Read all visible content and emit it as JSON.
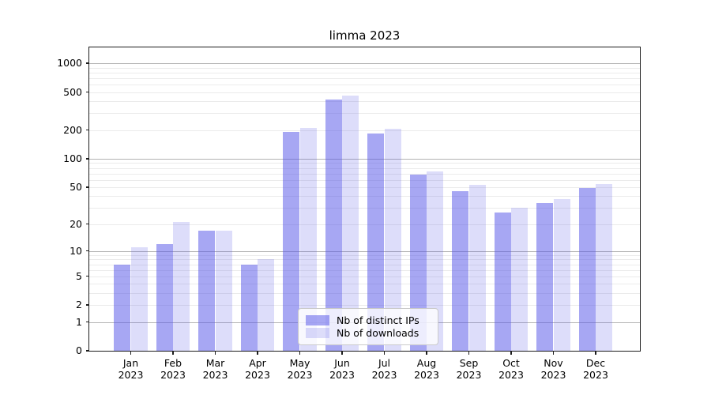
{
  "chart_data": {
    "type": "bar",
    "title": "limma 2023",
    "x_months": [
      "Jan",
      "Feb",
      "Mar",
      "Apr",
      "May",
      "Jun",
      "Jul",
      "Aug",
      "Sep",
      "Oct",
      "Nov",
      "Dec"
    ],
    "x_year": "2023",
    "series": [
      {
        "name": "Nb of distinct IPs",
        "color": "rgba(86,86,232,0.52)",
        "values": [
          7,
          12,
          17,
          7,
          193,
          420,
          186,
          68,
          45,
          27,
          34,
          49
        ]
      },
      {
        "name": "Nb of downloads",
        "color": "rgba(86,86,232,0.20)",
        "values": [
          11,
          21,
          17,
          8,
          210,
          460,
          205,
          74,
          53,
          30,
          37,
          54
        ]
      }
    ],
    "y_axis": {
      "scale": "log10(1+y)",
      "tick_labels": [
        "1000",
        "500",
        "200",
        "100",
        "50",
        "20",
        "10",
        "5",
        "2",
        "1",
        "0"
      ],
      "tick_values": [
        1000,
        500,
        200,
        100,
        50,
        20,
        10,
        5,
        2,
        1,
        0
      ],
      "minor_grid_values": [
        2,
        3,
        4,
        5,
        6,
        7,
        8,
        9,
        20,
        30,
        40,
        50,
        60,
        70,
        80,
        90,
        200,
        300,
        400,
        500,
        600,
        700,
        800,
        900
      ],
      "major_grid_values": [
        1,
        10,
        100,
        1000
      ],
      "top_value": 1465,
      "bottom_value": 0
    },
    "grid": true,
    "legend": {
      "position": "inside-bottom-center",
      "items": [
        "Nb of distinct IPs",
        "Nb of downloads"
      ]
    }
  },
  "colors": {
    "bar_distinct_ips": "rgba(86,86,232,0.52)",
    "bar_downloads": "rgba(86,86,232,0.20)",
    "grid_major": "#b3b3b3",
    "grid_minor": "#ebebeb",
    "spine": "#1c1c1c",
    "background": "#ffffff"
  }
}
